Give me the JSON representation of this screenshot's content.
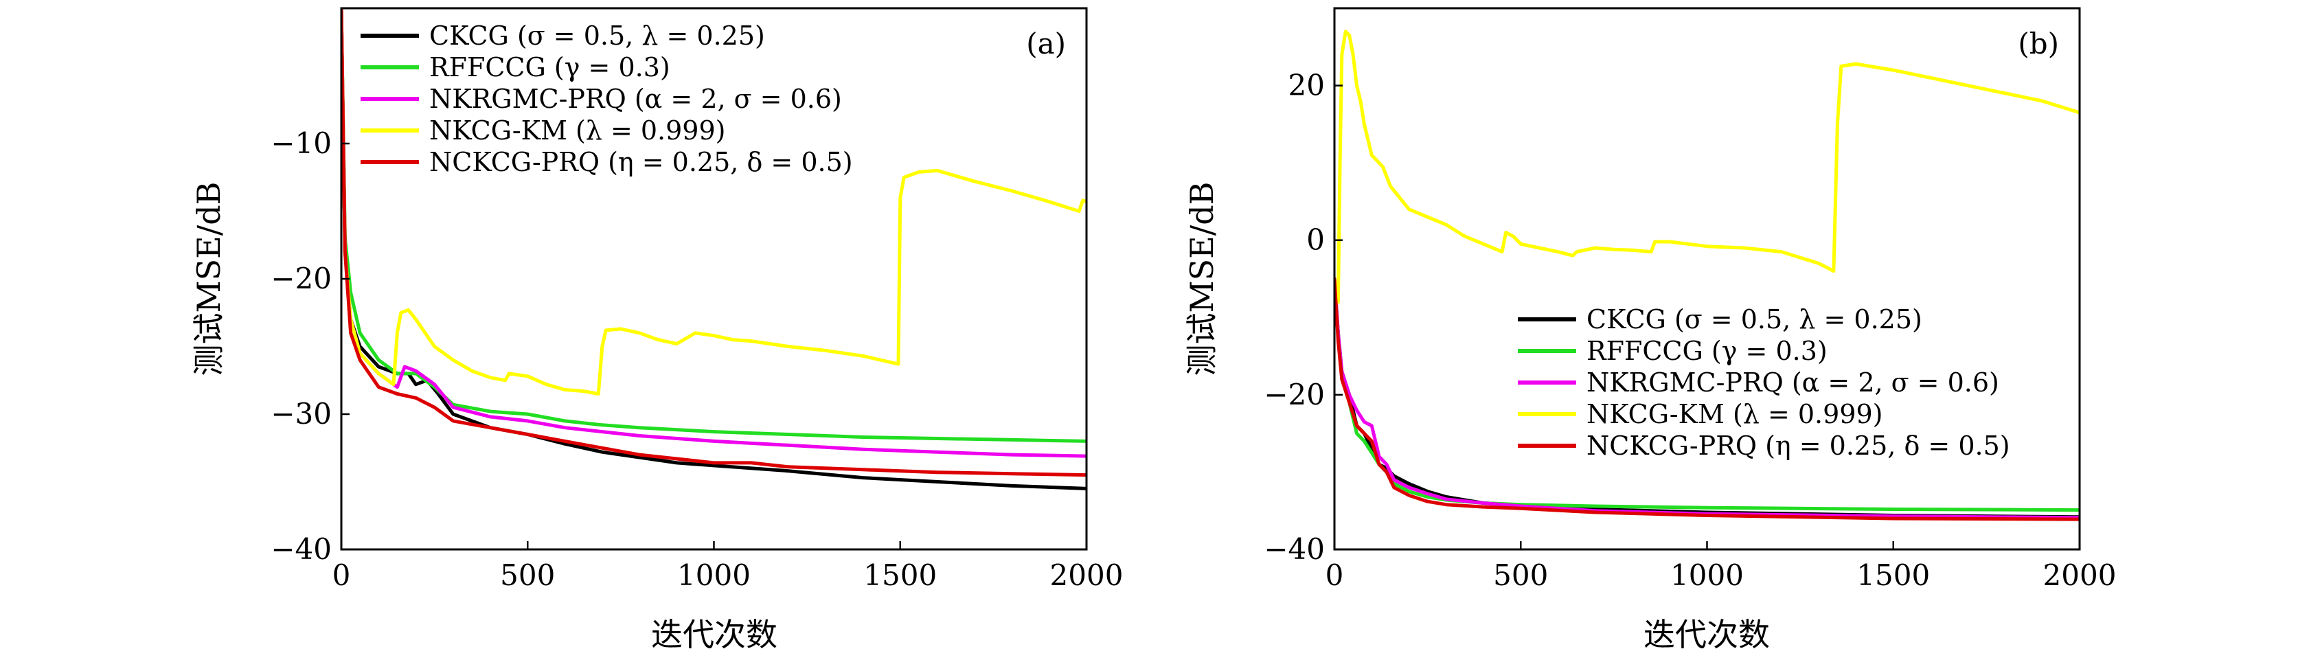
{
  "figure": {
    "panels": [
      {
        "tag": "(a)",
        "xlabel": "迭代次数",
        "ylabel": "测试MSE/dB",
        "legend_position": "top-left",
        "series_labels": [
          "CKCG (σ = 0.5, λ = 0.25)",
          "RFFCCG (γ = 0.3)",
          "NKRGMC-PRQ (α = 2, σ = 0.6)",
          "NKCG-KM (λ = 0.999)",
          "NCKCG-PRQ (η = 0.25, δ = 0.5)"
        ]
      },
      {
        "tag": "(b)",
        "xlabel": "迭代次数",
        "ylabel": "测试MSE/dB",
        "legend_position": "center-right",
        "series_labels": [
          "CKCG (σ = 0.5, λ = 0.25)",
          "RFFCCG (γ = 0.3)",
          "NKRGMC-PRQ (α = 2, σ = 0.6)",
          "NKCG-KM (λ = 0.999)",
          "NCKCG-PRQ (η = 0.25, δ = 0.5)"
        ]
      }
    ]
  },
  "chart_data": [
    {
      "type": "line",
      "title": "(a)",
      "xlabel": "迭代次数",
      "ylabel": "测试MSE/dB",
      "xlim": [
        0,
        2000
      ],
      "ylim": [
        -40,
        0
      ],
      "xticks": [
        0,
        500,
        1000,
        1500,
        2000
      ],
      "yticks": [
        -40,
        -30,
        -20,
        -10
      ],
      "grid": false,
      "legend_position": "top-left",
      "series": [
        {
          "name": "CKCG (σ = 0.5, λ = 0.25)",
          "color": "#000000",
          "x": [
            0,
            10,
            25,
            50,
            100,
            150,
            180,
            200,
            230,
            260,
            300,
            400,
            500,
            600,
            700,
            800,
            900,
            1000,
            1200,
            1400,
            1600,
            1800,
            2000
          ],
          "y": [
            0,
            -18,
            -23,
            -25,
            -26.5,
            -27,
            -27,
            -27.8,
            -27.5,
            -28.5,
            -30,
            -31,
            -31.5,
            -32.2,
            -32.8,
            -33.2,
            -33.6,
            -33.8,
            -34.2,
            -34.7,
            -35,
            -35.3,
            -35.5
          ]
        },
        {
          "name": "RFFCCG (γ = 0.3)",
          "color": "#22dd22",
          "x": [
            0,
            10,
            25,
            50,
            100,
            150,
            200,
            250,
            300,
            400,
            500,
            600,
            700,
            800,
            1000,
            1200,
            1400,
            1600,
            1800,
            2000
          ],
          "y": [
            0,
            -17,
            -21,
            -24,
            -26,
            -27,
            -27,
            -28,
            -29.3,
            -29.8,
            -30,
            -30.5,
            -30.8,
            -31,
            -31.3,
            -31.5,
            -31.7,
            -31.8,
            -31.9,
            -32
          ]
        },
        {
          "name": "NKRGMC-PRQ (α = 2, σ = 0.6)",
          "color": "#ee00ee",
          "x": [
            0,
            10,
            25,
            50,
            100,
            150,
            170,
            200,
            250,
            300,
            400,
            500,
            600,
            700,
            800,
            1000,
            1200,
            1400,
            1600,
            1800,
            2000
          ],
          "y": [
            0,
            -18,
            -23,
            -25.5,
            -27,
            -28,
            -26.5,
            -26.8,
            -27.8,
            -29.5,
            -30.2,
            -30.5,
            -31,
            -31.3,
            -31.6,
            -32,
            -32.3,
            -32.6,
            -32.8,
            -33,
            -33.1
          ]
        },
        {
          "name": "NKCG-KM (λ = 0.999)",
          "color": "#ffff00",
          "x": [
            0,
            10,
            25,
            50,
            100,
            140,
            150,
            160,
            180,
            200,
            250,
            300,
            350,
            400,
            440,
            450,
            500,
            550,
            600,
            650,
            690,
            700,
            710,
            750,
            800,
            850,
            900,
            950,
            1000,
            1050,
            1100,
            1200,
            1300,
            1400,
            1495,
            1500,
            1510,
            1550,
            1600,
            1700,
            1800,
            1900,
            1980,
            1990,
            2000
          ],
          "y": [
            0,
            -18,
            -23,
            -25.5,
            -27,
            -27.8,
            -24,
            -22.5,
            -22.3,
            -23,
            -25,
            -26,
            -26.8,
            -27.3,
            -27.5,
            -27,
            -27.2,
            -27.8,
            -28.2,
            -28.3,
            -28.5,
            -25,
            -23.8,
            -23.7,
            -24,
            -24.5,
            -24.8,
            -24,
            -24.2,
            -24.5,
            -24.6,
            -25,
            -25.3,
            -25.7,
            -26.3,
            -14,
            -12.5,
            -12.1,
            -12,
            -12.8,
            -13.5,
            -14.3,
            -15,
            -14.2,
            -14.3
          ]
        },
        {
          "name": "NCKCG-PRQ (η = 0.25, δ = 0.5)",
          "color": "#dd0000",
          "x": [
            0,
            10,
            25,
            50,
            100,
            150,
            200,
            250,
            300,
            400,
            500,
            600,
            700,
            800,
            900,
            1000,
            1100,
            1200,
            1400,
            1600,
            1800,
            2000
          ],
          "y": [
            0,
            -18,
            -24,
            -26,
            -28,
            -28.5,
            -28.8,
            -29.5,
            -30.5,
            -31,
            -31.5,
            -32,
            -32.5,
            -33,
            -33.3,
            -33.6,
            -33.6,
            -33.9,
            -34.1,
            -34.3,
            -34.4,
            -34.5
          ]
        }
      ]
    },
    {
      "type": "line",
      "title": "(b)",
      "xlabel": "迭代次数",
      "ylabel": "测试MSE/dB",
      "xlim": [
        0,
        2000
      ],
      "ylim": [
        -40,
        30
      ],
      "xticks": [
        0,
        500,
        1000,
        1500,
        2000
      ],
      "yticks": [
        -40,
        -20,
        0,
        20
      ],
      "grid": false,
      "legend_position": "center-right",
      "series": [
        {
          "name": "CKCG (σ = 0.5, λ = 0.25)",
          "color": "#000000",
          "x": [
            0,
            10,
            20,
            40,
            60,
            80,
            100,
            120,
            140,
            160,
            200,
            250,
            300,
            400,
            500,
            700,
            1000,
            1500,
            2000
          ],
          "y": [
            -5,
            -12,
            -17,
            -20,
            -24,
            -25,
            -27,
            -29,
            -29.5,
            -30.5,
            -31.5,
            -32.5,
            -33.2,
            -34,
            -34.3,
            -34.8,
            -35.2,
            -35.6,
            -35.8
          ]
        },
        {
          "name": "RFFCCG (γ = 0.3)",
          "color": "#22dd22",
          "x": [
            0,
            10,
            20,
            40,
            60,
            80,
            100,
            120,
            140,
            160,
            200,
            250,
            300,
            400,
            500,
            700,
            1000,
            1500,
            2000
          ],
          "y": [
            -5,
            -12,
            -17,
            -21,
            -25,
            -26,
            -27.5,
            -29,
            -30,
            -31.5,
            -32.5,
            -33.2,
            -33.6,
            -34,
            -34.2,
            -34.4,
            -34.6,
            -34.8,
            -34.9
          ]
        },
        {
          "name": "NKRGMC-PRQ (α = 2, σ = 0.6)",
          "color": "#ee00ee",
          "x": [
            0,
            10,
            20,
            40,
            60,
            80,
            100,
            120,
            140,
            160,
            200,
            250,
            300,
            400,
            500,
            700,
            1000,
            1500,
            2000
          ],
          "y": [
            -5,
            -12,
            -17,
            -20,
            -22,
            -23.5,
            -24,
            -28,
            -29,
            -31,
            -32,
            -32.8,
            -33.5,
            -34,
            -34.4,
            -35,
            -35.4,
            -35.7,
            -35.9
          ]
        },
        {
          "name": "NKCG-KM (λ = 0.999)",
          "color": "#ffff00",
          "x": [
            0,
            10,
            15,
            20,
            30,
            40,
            50,
            60,
            70,
            80,
            100,
            130,
            150,
            200,
            250,
            300,
            350,
            400,
            450,
            460,
            480,
            500,
            550,
            600,
            640,
            650,
            700,
            750,
            800,
            850,
            860,
            900,
            950,
            1000,
            1100,
            1200,
            1300,
            1340,
            1350,
            1360,
            1400,
            1500,
            1600,
            1700,
            1800,
            1900,
            2000
          ],
          "y": [
            -5,
            -8,
            10,
            24,
            27,
            26.5,
            24,
            20,
            18,
            15,
            11,
            9.5,
            7,
            4,
            3,
            2,
            0.5,
            -0.5,
            -1.5,
            1,
            0.5,
            -0.5,
            -1,
            -1.5,
            -2,
            -1.5,
            -1,
            -1.2,
            -1.3,
            -1.5,
            -0.2,
            -0.2,
            -0.5,
            -0.8,
            -1,
            -1.5,
            -3,
            -4,
            15,
            22.5,
            22.8,
            22,
            21,
            20,
            19,
            18,
            16.5
          ]
        },
        {
          "name": "NCKCG-PRQ (η = 0.25, δ = 0.5)",
          "color": "#dd0000",
          "x": [
            0,
            10,
            20,
            40,
            60,
            80,
            100,
            120,
            140,
            160,
            200,
            250,
            300,
            400,
            500,
            700,
            1000,
            1500,
            2000
          ],
          "y": [
            -5,
            -13,
            -18,
            -21,
            -24,
            -25,
            -26,
            -29,
            -30,
            -32,
            -33,
            -33.8,
            -34.2,
            -34.5,
            -34.7,
            -35.2,
            -35.6,
            -36,
            -36.1
          ]
        }
      ]
    }
  ]
}
